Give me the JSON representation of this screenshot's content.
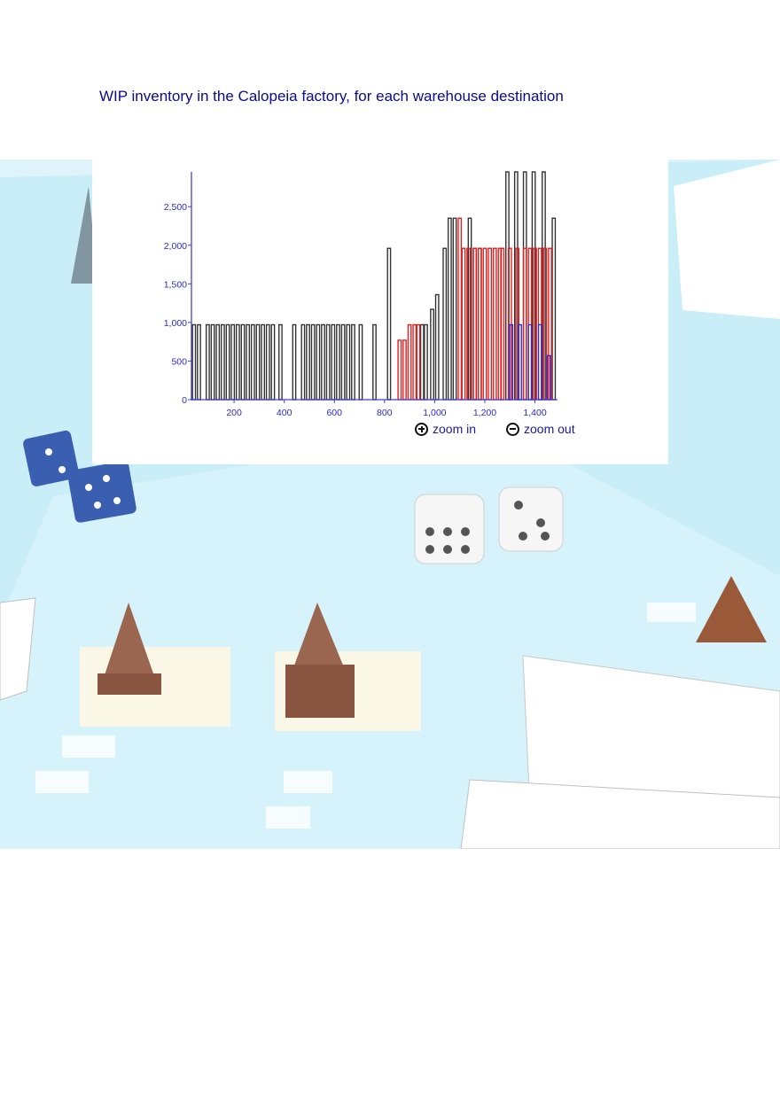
{
  "page": {
    "title": "WIP inventory in the Calopeia factory, for each warehouse destination"
  },
  "controls": {
    "zoom_in_label": "zoom in",
    "zoom_out_label": "zoom out",
    "zoom_in_icon": "plus-circle-icon",
    "zoom_out_icon": "minus-circle-icon"
  },
  "colors": {
    "axis": "#4040e0",
    "tick_label": "#2a2ad0",
    "title": "#0a0a8c",
    "series_black": "#333333",
    "series_red": "#e02020",
    "series_blue": "#2a2ad8"
  },
  "chart_data": {
    "type": "bar",
    "title": "",
    "xlabel": "",
    "ylabel": "",
    "xlim": [
      30,
      1490
    ],
    "ylim": [
      0,
      2950
    ],
    "xticks": [
      {
        "value": 200,
        "label": "200"
      },
      {
        "value": 400,
        "label": "400"
      },
      {
        "value": 600,
        "label": "600"
      },
      {
        "value": 800,
        "label": "800"
      },
      {
        "value": 1000,
        "label": "1,000"
      },
      {
        "value": 1200,
        "label": "1,200"
      },
      {
        "value": 1400,
        "label": "1,400"
      }
    ],
    "yticks": [
      {
        "value": 0,
        "label": "0"
      },
      {
        "value": 500,
        "label": "500"
      },
      {
        "value": 1000,
        "label": "1,000"
      },
      {
        "value": 1500,
        "label": "1,500"
      },
      {
        "value": 2000,
        "label": "2,000"
      },
      {
        "value": 2500,
        "label": "2,500"
      }
    ],
    "bar_width": 12,
    "grid": false,
    "series": [
      {
        "color": "#333333",
        "points": [
          [
            40,
            970
          ],
          [
            60,
            970
          ],
          [
            95,
            970
          ],
          [
            115,
            970
          ],
          [
            135,
            970
          ],
          [
            155,
            970
          ],
          [
            175,
            970
          ],
          [
            195,
            970
          ],
          [
            215,
            970
          ],
          [
            235,
            970
          ],
          [
            255,
            970
          ],
          [
            275,
            970
          ],
          [
            295,
            970
          ],
          [
            315,
            970
          ],
          [
            335,
            970
          ],
          [
            355,
            970
          ],
          [
            385,
            970
          ],
          [
            440,
            970
          ],
          [
            475,
            970
          ],
          [
            495,
            970
          ],
          [
            515,
            970
          ],
          [
            535,
            970
          ],
          [
            555,
            970
          ],
          [
            575,
            970
          ],
          [
            595,
            970
          ],
          [
            615,
            970
          ],
          [
            635,
            970
          ],
          [
            655,
            970
          ],
          [
            675,
            970
          ],
          [
            705,
            970
          ],
          [
            760,
            970
          ],
          [
            818,
            1960
          ],
          [
            950,
            970
          ],
          [
            965,
            970
          ],
          [
            990,
            1170
          ],
          [
            1010,
            1360
          ],
          [
            1040,
            1960
          ],
          [
            1060,
            2350
          ],
          [
            1080,
            2350
          ],
          [
            1140,
            2350
          ],
          [
            1160,
            1960
          ],
          [
            1180,
            1960
          ],
          [
            1290,
            2950
          ],
          [
            1325,
            2950
          ],
          [
            1360,
            2950
          ],
          [
            1395,
            2950
          ],
          [
            1435,
            2950
          ],
          [
            1475,
            2350
          ]
        ]
      },
      {
        "color": "#e02020",
        "points": [
          [
            860,
            770
          ],
          [
            880,
            770
          ],
          [
            900,
            970
          ],
          [
            920,
            970
          ],
          [
            935,
            970
          ],
          [
            1100,
            2350
          ],
          [
            1115,
            1960
          ],
          [
            1135,
            1960
          ],
          [
            1160,
            1960
          ],
          [
            1180,
            1960
          ],
          [
            1200,
            1960
          ],
          [
            1220,
            1960
          ],
          [
            1240,
            1960
          ],
          [
            1260,
            1960
          ],
          [
            1270,
            1960
          ],
          [
            1300,
            1960
          ],
          [
            1330,
            1960
          ],
          [
            1360,
            1960
          ],
          [
            1380,
            1960
          ],
          [
            1400,
            1960
          ],
          [
            1420,
            1960
          ],
          [
            1440,
            1960
          ],
          [
            1460,
            1960
          ]
        ]
      },
      {
        "color": "#2a2ad8",
        "points": [
          [
            1305,
            970
          ],
          [
            1340,
            970
          ],
          [
            1380,
            970
          ],
          [
            1420,
            970
          ],
          [
            1455,
            570
          ]
        ]
      }
    ]
  }
}
